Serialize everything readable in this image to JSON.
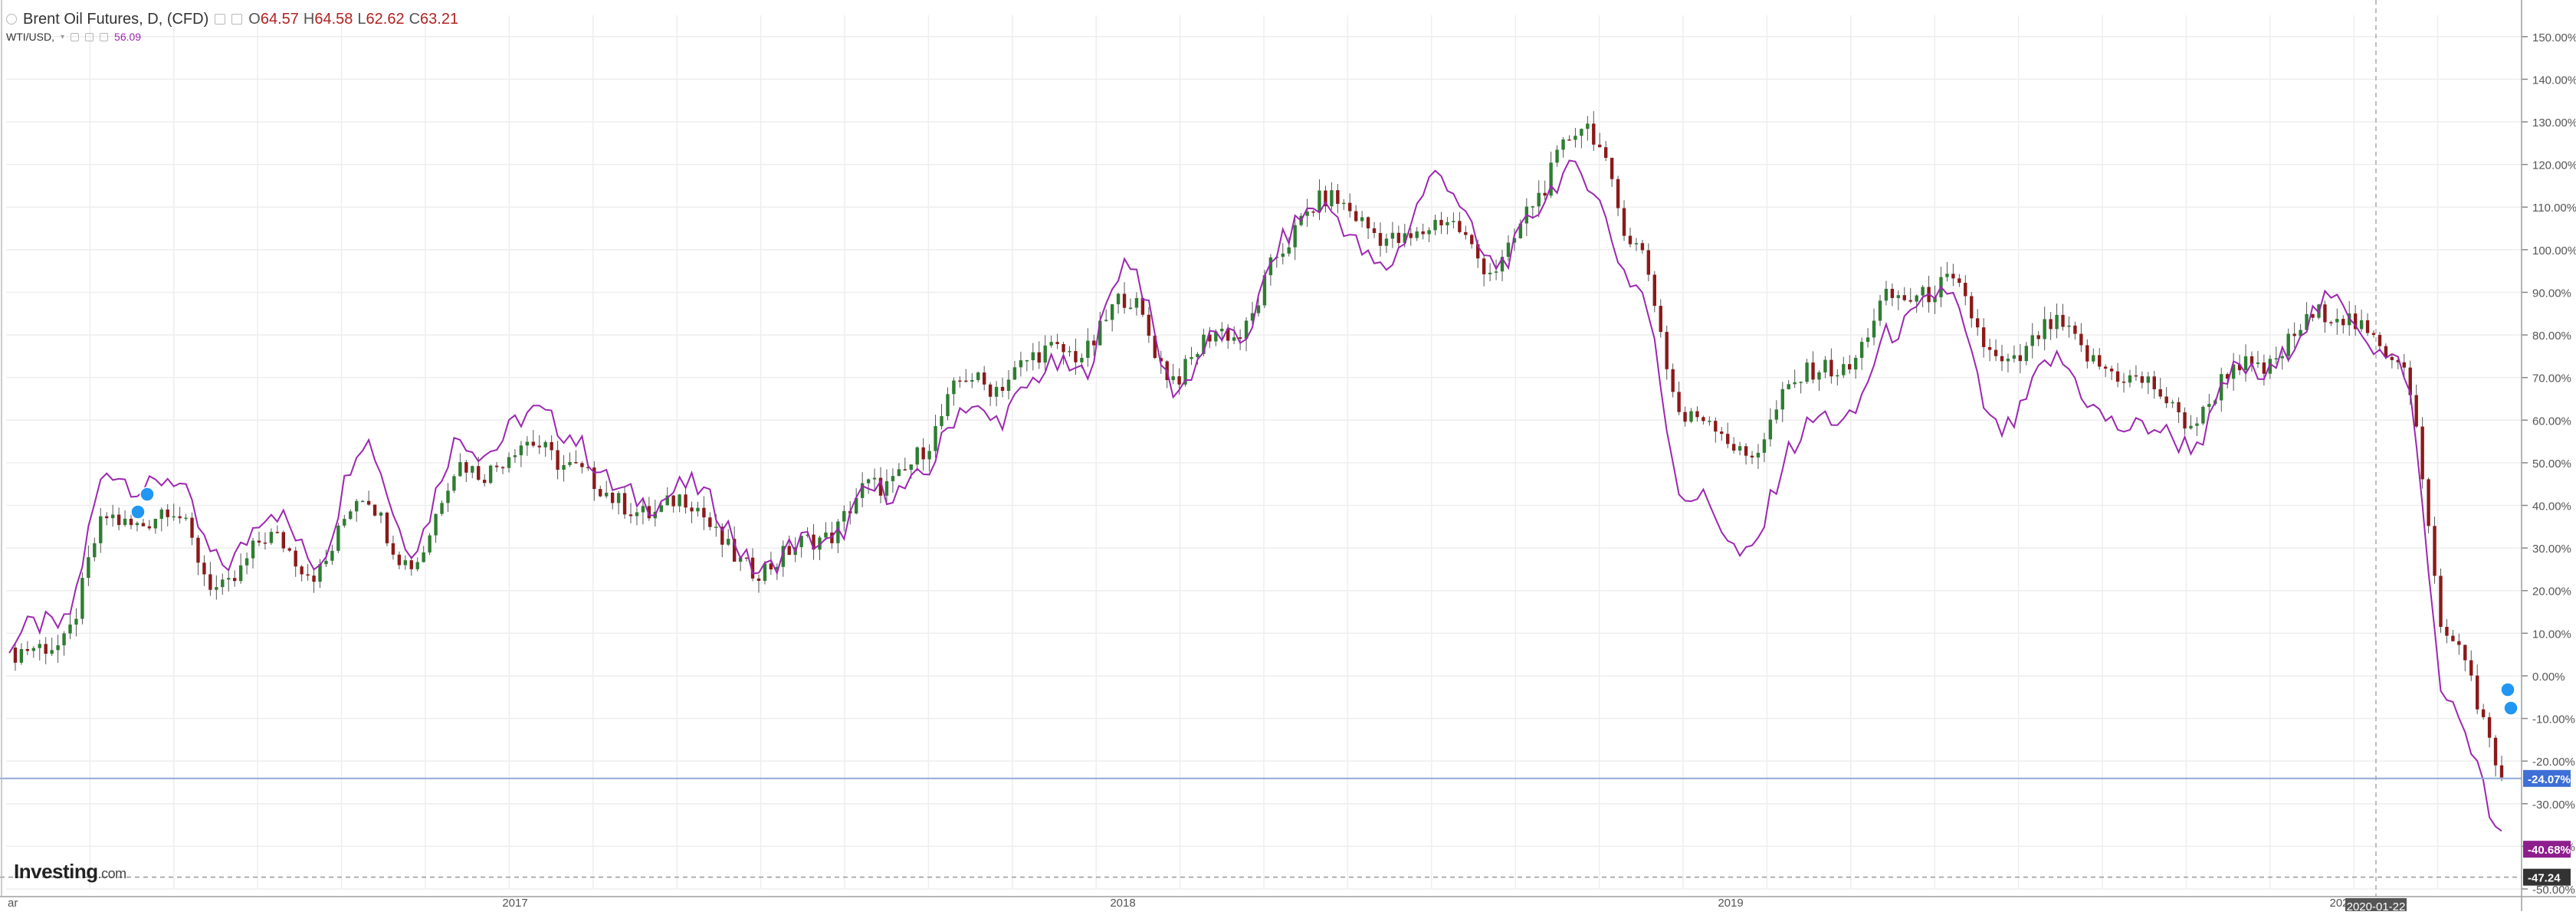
{
  "legend": {
    "main_title": "Brent Oil Futures, D, (CFD)",
    "ohlc": [
      {
        "label": "O",
        "value": "64.57"
      },
      {
        "label": "H",
        "value": "64.58"
      },
      {
        "label": "L",
        "value": "62.62"
      },
      {
        "label": "C",
        "value": "63.21"
      }
    ],
    "compare_symbol": "WTI/USD,",
    "compare_value": "56.09"
  },
  "watermark": {
    "brand": "Investing",
    "suffix": ".com"
  },
  "colors": {
    "up": "#2e7d32",
    "down": "#8b1a1a",
    "compare_line": "#9c27b0",
    "grid": "#eeeeee",
    "axis_text": "#555555",
    "marker": "#2196f3",
    "brent_label_bg": "#3d6fd6",
    "wti_label_bg": "#8e1e8e",
    "date_label_bg": "#555555"
  },
  "chart_data": {
    "type": "line",
    "title": "Brent Oil Futures, D, (CFD)",
    "y_unit": "% change",
    "ylim": [
      -50,
      155
    ],
    "y_ticks": [
      "150.00%",
      "140.00%",
      "130.00%",
      "120.00%",
      "110.00%",
      "100.00%",
      "90.00%",
      "80.00%",
      "70.00%",
      "60.00%",
      "50.00%",
      "40.00%",
      "30.00%",
      "20.00%",
      "10.00%",
      "0.00%",
      "-10.00%",
      "-20.00%",
      "-30.00%",
      "-40.00%",
      "-50.00%"
    ],
    "x_ticks": [
      "ar",
      "2017",
      "2018",
      "2019",
      "202",
      "2020-01-22"
    ],
    "grid": true,
    "series": [
      {
        "name": "Brent Oil Futures, D, (CFD)",
        "style": "candlestick",
        "x": [
          "2016-03",
          "2016-04",
          "2016-05",
          "2016-06",
          "2016-07",
          "2016-08",
          "2016-09",
          "2016-10",
          "2016-11",
          "2016-12",
          "2017-01",
          "2017-02",
          "2017-03",
          "2017-04",
          "2017-05",
          "2017-06",
          "2017-07",
          "2017-08",
          "2017-09",
          "2017-10",
          "2017-11",
          "2017-12",
          "2018-01",
          "2018-02",
          "2018-03",
          "2018-04",
          "2018-05",
          "2018-06",
          "2018-07",
          "2018-08",
          "2018-09",
          "2018-10",
          "2018-11",
          "2018-12",
          "2019-01",
          "2019-02",
          "2019-03",
          "2019-04",
          "2019-05",
          "2019-06",
          "2019-07",
          "2019-08",
          "2019-09",
          "2019-10",
          "2019-11",
          "2019-12",
          "2020-01",
          "2020-02",
          "2020-03",
          "2020-04"
        ],
        "values": [
          2,
          10,
          35,
          40,
          22,
          30,
          27,
          40,
          28,
          50,
          52,
          52,
          38,
          42,
          32,
          24,
          35,
          42,
          55,
          70,
          72,
          78,
          86,
          72,
          80,
          98,
          115,
          100,
          108,
          96,
          110,
          132,
          98,
          62,
          52,
          66,
          74,
          86,
          94,
          74,
          80,
          76,
          66,
          62,
          72,
          80,
          86,
          72,
          10,
          -24.07
        ]
      },
      {
        "name": "WTI/USD",
        "style": "line",
        "x": [
          "2016-03",
          "2016-04",
          "2016-05",
          "2016-06",
          "2016-07",
          "2016-08",
          "2016-09",
          "2016-10",
          "2016-11",
          "2016-12",
          "2017-01",
          "2017-02",
          "2017-03",
          "2017-04",
          "2017-05",
          "2017-06",
          "2017-07",
          "2017-08",
          "2017-09",
          "2017-10",
          "2017-11",
          "2017-12",
          "2018-01",
          "2018-02",
          "2018-03",
          "2018-04",
          "2018-05",
          "2018-06",
          "2018-07",
          "2018-08",
          "2018-09",
          "2018-10",
          "2018-11",
          "2018-12",
          "2019-01",
          "2019-02",
          "2019-03",
          "2019-04",
          "2019-05",
          "2019-06",
          "2019-07",
          "2019-08",
          "2019-09",
          "2019-10",
          "2019-11",
          "2019-12",
          "2020-01",
          "2020-02",
          "2020-03",
          "2020-04"
        ],
        "values": [
          5,
          15,
          45,
          48,
          28,
          36,
          30,
          52,
          33,
          55,
          58,
          60,
          40,
          45,
          37,
          24,
          34,
          40,
          50,
          62,
          66,
          74,
          94,
          70,
          78,
          100,
          112,
          92,
          120,
          97,
          108,
          120,
          88,
          45,
          27,
          52,
          62,
          77,
          94,
          57,
          72,
          65,
          55,
          58,
          70,
          80,
          88,
          70,
          -5,
          -40.68
        ]
      }
    ],
    "value_labels": {
      "brent_last": "-24.07%",
      "wti_last": "-40.68%",
      "baseline": "-47.24"
    },
    "crosshair_date": "2020-01-22"
  }
}
